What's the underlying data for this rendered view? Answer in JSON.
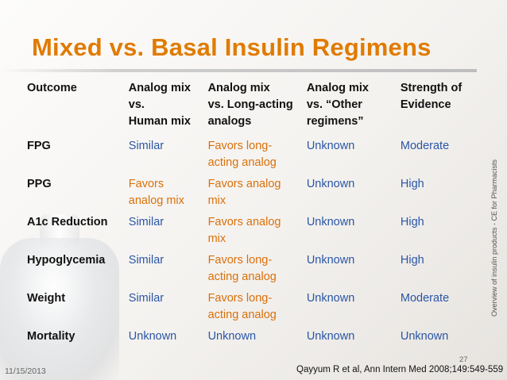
{
  "slide": {
    "title": "Mixed vs. Basal Insulin Regimens",
    "side_text": "Overview of insulin products - CE for Pharmacists",
    "date": "11/15/2013",
    "page_number": "27",
    "citation": "Qayyum R et al, Ann Intern Med 2008;149:549-559"
  },
  "table": {
    "headers": [
      "Outcome",
      "Analog mix\nvs.\nHuman mix",
      "Analog mix\nvs. Long-acting\nanalogs",
      "Analog mix\nvs. “Other\nregimens”",
      "Strength of\nEvidence"
    ],
    "rows": [
      [
        "FPG",
        "Similar",
        "Favors long-\nacting analog",
        "Unknown",
        "Moderate"
      ],
      [
        "PPG",
        "Favors\nanalog mix",
        "Favors analog\nmix",
        "Unknown",
        "High"
      ],
      [
        "A1c Reduction",
        "Similar",
        "Favors analog\nmix",
        "Unknown",
        "High"
      ],
      [
        "Hypoglycemia",
        "Similar",
        "Favors long-\nacting analog",
        "Unknown",
        "High"
      ],
      [
        "Weight",
        "Similar",
        "Favors long-\nacting analog",
        "Unknown",
        "Moderate"
      ],
      [
        "Mortality",
        "Unknown",
        "Unknown",
        "Unknown",
        "Unknown"
      ]
    ]
  },
  "colors": {
    "title": "#e07b00",
    "favors_text": "#d9700a",
    "other_text": "#2a56a6"
  }
}
